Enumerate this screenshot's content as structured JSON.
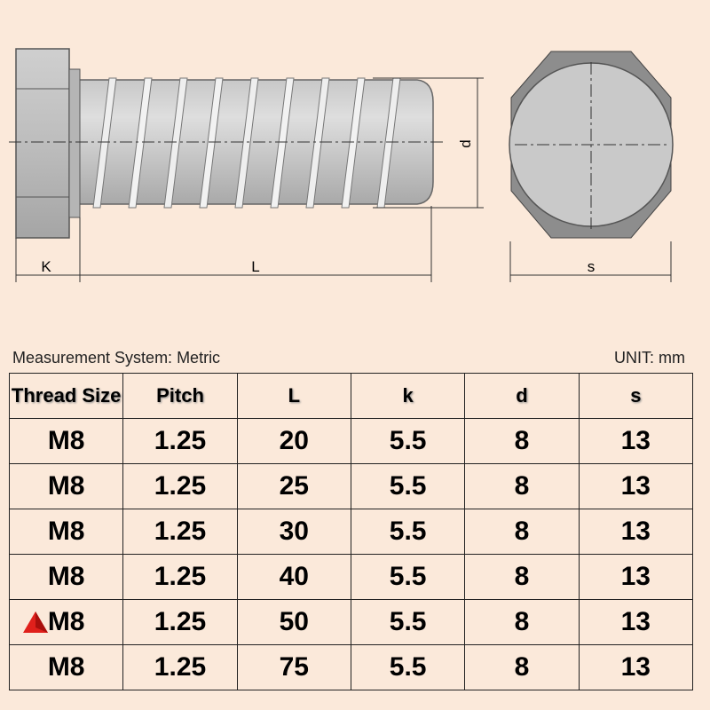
{
  "diagram": {
    "labels": {
      "k": "K",
      "l": "L",
      "d": "d",
      "s": "s"
    }
  },
  "caption": {
    "system": "Measurement System: Metric",
    "unit": "UNIT: mm"
  },
  "table": {
    "header": [
      "Thread Size",
      "Pitch",
      "L",
      "k",
      "d",
      "s"
    ],
    "rows": [
      [
        "M8",
        "1.25",
        "20",
        "5.5",
        "8",
        "13"
      ],
      [
        "M8",
        "1.25",
        "25",
        "5.5",
        "8",
        "13"
      ],
      [
        "M8",
        "1.25",
        "30",
        "5.5",
        "8",
        "13"
      ],
      [
        "M8",
        "1.25",
        "40",
        "5.5",
        "8",
        "13"
      ],
      [
        "M8",
        "1.25",
        "50",
        "5.5",
        "8",
        "13"
      ],
      [
        "M8",
        "1.25",
        "75",
        "5.5",
        "8",
        "13"
      ]
    ]
  }
}
